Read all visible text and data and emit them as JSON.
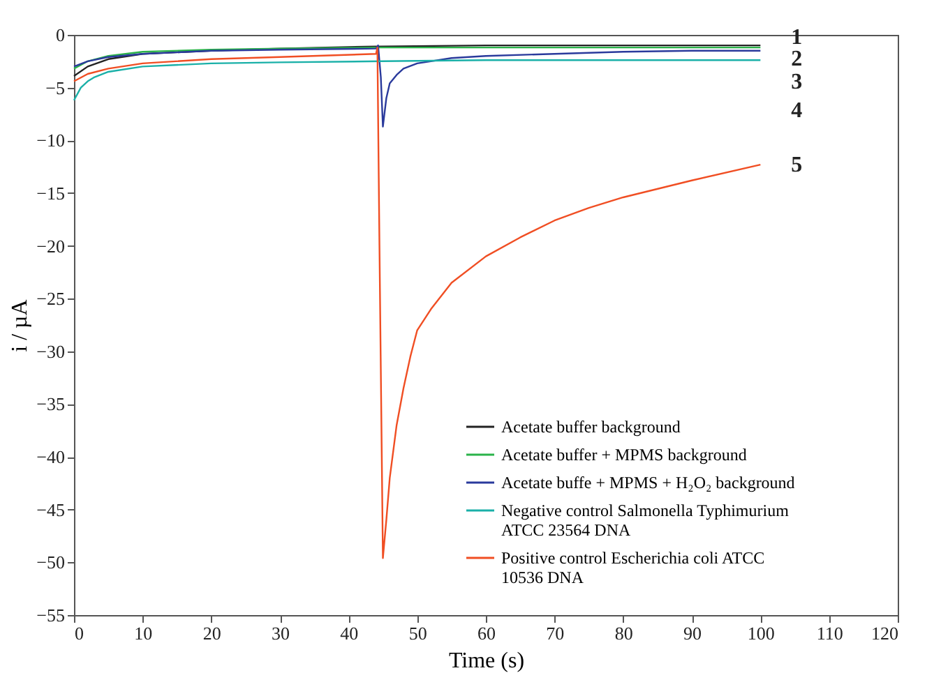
{
  "chart_data": {
    "type": "line",
    "xlabel": "Time (s)",
    "ylabel": "i / µA",
    "xlim": [
      0,
      120
    ],
    "ylim": [
      -55,
      0
    ],
    "xticks": [
      0,
      10,
      20,
      30,
      40,
      50,
      60,
      70,
      80,
      90,
      100,
      110,
      120
    ],
    "yticks": [
      0,
      -5,
      -10,
      -15,
      -20,
      -25,
      -30,
      -35,
      -40,
      -45,
      -50,
      -55
    ],
    "grid": false,
    "legend": "bottom right",
    "line_style": "solid",
    "marker": "none",
    "series": [
      {
        "name": "Acetate buffer background",
        "color": "#222222",
        "x": [
          0,
          2,
          5,
          10,
          20,
          30,
          44,
          44.5,
          60,
          80,
          100
        ],
        "values": [
          -3.9,
          -3,
          -2.3,
          -1.8,
          -1.5,
          -1.3,
          -1.1,
          -1.1,
          -1.0,
          -1.0,
          -1.0
        ]
      },
      {
        "name": "Acetate buffer + MPMS background",
        "color": "#2bb34a",
        "x": [
          0,
          2,
          5,
          10,
          20,
          30,
          44,
          44.5,
          60,
          80,
          100
        ],
        "values": [
          -3.2,
          -2.5,
          -2,
          -1.6,
          -1.4,
          -1.3,
          -1.2,
          -1.2,
          -1.2,
          -1.2,
          -1.2
        ]
      },
      {
        "name": "Acetate buffe + MPMS + H₂O₂ background",
        "color": "#2a3a9c",
        "x": [
          0,
          2,
          5,
          10,
          20,
          30,
          44,
          44.3,
          44.7,
          45,
          45.5,
          46,
          47,
          48,
          50,
          55,
          60,
          70,
          80,
          90,
          100
        ],
        "values": [
          -3.0,
          -2.5,
          -2.1,
          -1.8,
          -1.5,
          -1.4,
          -1.3,
          -1.0,
          -4,
          -8.7,
          -6,
          -4.6,
          -3.8,
          -3.2,
          -2.7,
          -2.2,
          -2,
          -1.8,
          -1.6,
          -1.5,
          -1.5
        ]
      },
      {
        "name": "Negative control Salmonella Typhimurium ATCC 23564 DNA",
        "color": "#1ab0a8",
        "x": [
          0,
          1,
          2,
          3,
          5,
          10,
          20,
          30,
          45,
          60,
          80,
          100
        ],
        "values": [
          -6.2,
          -5,
          -4.4,
          -4,
          -3.5,
          -3,
          -2.7,
          -2.6,
          -2.5,
          -2.4,
          -2.4,
          -2.4
        ]
      },
      {
        "name": "Positive control Escherichia coli ATCC 10536 DNA",
        "color": "#f04e23",
        "x": [
          0,
          2,
          5,
          10,
          20,
          30,
          44,
          44.2,
          44.5,
          45,
          45.5,
          46,
          47,
          48,
          49,
          50,
          52,
          55,
          60,
          65,
          70,
          75,
          80,
          90,
          100
        ],
        "values": [
          -4.4,
          -3.7,
          -3.2,
          -2.7,
          -2.3,
          -2.1,
          -1.8,
          -1.2,
          -20,
          -49.6,
          -46,
          -42,
          -37,
          -33.5,
          -30.5,
          -28,
          -26,
          -23.5,
          -21,
          -19.2,
          -17.6,
          -16.4,
          -15.4,
          -13.8,
          -12.3
        ]
      }
    ],
    "annotations": [
      "1",
      "2",
      "3",
      "4",
      "5"
    ]
  }
}
